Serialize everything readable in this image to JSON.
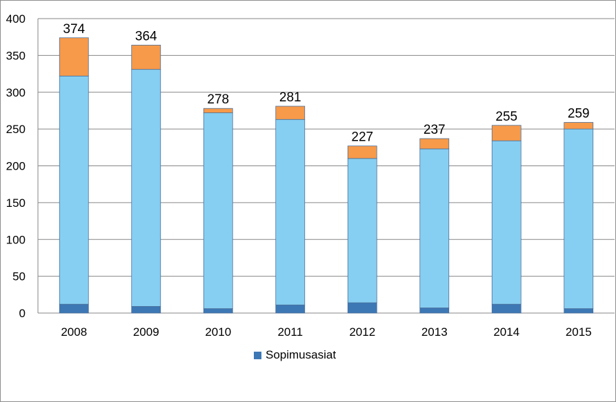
{
  "chart_data": {
    "type": "bar",
    "stacked": true,
    "categories": [
      "2008",
      "2009",
      "2010",
      "2011",
      "2012",
      "2013",
      "2014",
      "2015"
    ],
    "series": [
      {
        "name": "Sopimusasiat",
        "color": "#3d78b5",
        "values": [
          12,
          9,
          6,
          11,
          14,
          7,
          12,
          6
        ]
      },
      {
        "color": "#87cff2",
        "values": [
          310,
          322,
          266,
          252,
          196,
          216,
          222,
          244
        ]
      },
      {
        "color": "#f79a4a",
        "values": [
          52,
          33,
          6,
          18,
          17,
          14,
          21,
          9
        ]
      }
    ],
    "totals": [
      374,
      364,
      278,
      281,
      227,
      237,
      255,
      259
    ],
    "total_labels": [
      "374",
      "364",
      "278",
      "281",
      "227",
      "237",
      "255",
      "259"
    ],
    "y_ticks": [
      "0",
      "50",
      "100",
      "150",
      "200",
      "250",
      "300",
      "350",
      "400"
    ],
    "ylim": [
      0,
      400
    ],
    "grid": true,
    "legend": {
      "position": "bottom",
      "entries": [
        "Sopimusasiat"
      ]
    },
    "title": "",
    "xlabel": "",
    "ylabel": ""
  }
}
